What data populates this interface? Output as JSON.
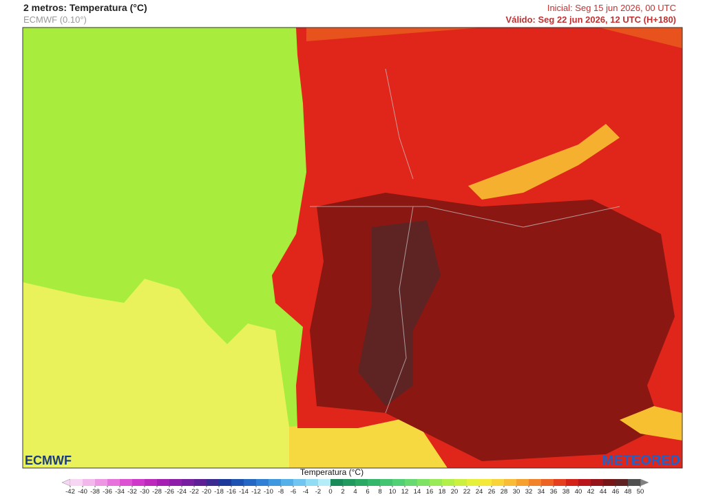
{
  "header": {
    "title": "2 metros: Temperatura (°C)",
    "model": "ECMWF (0.10°)",
    "initial": "Inicial: Seg 15 jun 2026, 00 UTC",
    "valid": "Válido: Seg 22 jun 2026, 12 UTC (H+180)"
  },
  "logos": {
    "left": "ECMWF",
    "right": "METEORED"
  },
  "legend": {
    "title": "Temperatura (°C)",
    "ticks": [
      -42,
      -40,
      -38,
      -36,
      -34,
      -32,
      -30,
      -28,
      -26,
      -24,
      -22,
      -20,
      -18,
      -16,
      -14,
      -12,
      -10,
      -8,
      -6,
      -4,
      -2,
      0,
      2,
      4,
      6,
      8,
      10,
      12,
      14,
      16,
      18,
      20,
      22,
      24,
      26,
      28,
      30,
      32,
      34,
      36,
      38,
      40,
      42,
      44,
      46,
      48,
      50
    ],
    "colors": [
      "#f7d6f3",
      "#f2b8ec",
      "#ec96e4",
      "#e673dc",
      "#dd52d2",
      "#cf38c8",
      "#bd28bd",
      "#a51fb3",
      "#8e1ea9",
      "#761e9f",
      "#5e1f96",
      "#3b2a8f",
      "#1b3a9a",
      "#1d52b0",
      "#2468c4",
      "#2f80d4",
      "#3e98e0",
      "#55b0ea",
      "#70c6f0",
      "#90dcf5",
      "#b4ecf8",
      "#1a8a5a",
      "#22995f",
      "#2aa864",
      "#34b76a",
      "#42c470",
      "#52d076",
      "#66da70",
      "#7ee264",
      "#98ea58",
      "#b2ef4a",
      "#ccf040",
      "#e4f03c",
      "#f4e83a",
      "#f8d43a",
      "#f8bc36",
      "#f6a030",
      "#f2822a",
      "#ec6224",
      "#e4401e",
      "#d42218",
      "#b8161a",
      "#961418",
      "#761616",
      "#5e2222",
      "#505050"
    ]
  }
}
